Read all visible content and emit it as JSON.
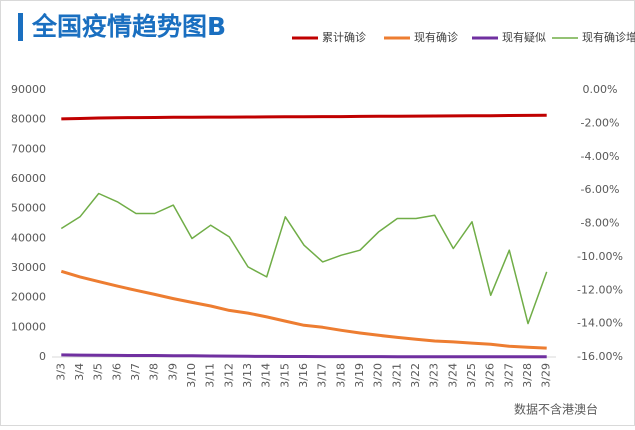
{
  "chart_data": {
    "type": "line",
    "title": "全国疫情趋势图B",
    "source": "数据不含港澳台",
    "categories": [
      "3/3",
      "3/4",
      "3/5",
      "3/6",
      "3/7",
      "3/8",
      "3/9",
      "3/10",
      "3/11",
      "3/12",
      "3/13",
      "3/14",
      "3/15",
      "3/16",
      "3/17",
      "3/18",
      "3/19",
      "3/20",
      "3/21",
      "3/22",
      "3/23",
      "3/24",
      "3/25",
      "3/26",
      "3/27",
      "3/28",
      "3/29"
    ],
    "series": [
      {
        "name": "累计确诊",
        "color": "#c00000",
        "width": 3,
        "values": [
          80270,
          80400,
          80550,
          80650,
          80700,
          80740,
          80790,
          80810,
          80860,
          80880,
          80900,
          80930,
          80970,
          80990,
          81020,
          81050,
          81090,
          81120,
          81170,
          81200,
          81230,
          81270,
          81300,
          81350,
          81400,
          81450,
          81470
        ]
      },
      {
        "name": "现有确诊",
        "color": "#ed7d31",
        "width": 3,
        "values": [
          28900,
          27000,
          25400,
          23900,
          22500,
          21100,
          19700,
          18400,
          17200,
          15700,
          14800,
          13500,
          12100,
          10700,
          10000,
          9000,
          8100,
          7300,
          6600,
          6000,
          5400,
          5100,
          4700,
          4300,
          3600,
          3300,
          3000
        ]
      },
      {
        "name": "现有疑似",
        "color": "#7030a0",
        "width": 3,
        "values": [
          700,
          650,
          600,
          550,
          520,
          500,
          450,
          400,
          350,
          300,
          250,
          200,
          180,
          160,
          150,
          140,
          130,
          120,
          110,
          100,
          100,
          100,
          100,
          100,
          100,
          100,
          100
        ]
      },
      {
        "name": "现有确诊增速",
        "color": "#70ad47",
        "width": 1.5,
        "axis": "y2",
        "values": [
          -8.3,
          -7.6,
          -6.2,
          -6.7,
          -7.4,
          -7.4,
          -6.9,
          -8.9,
          -8.1,
          -8.8,
          -10.6,
          -11.2,
          -7.6,
          -9.3,
          -10.3,
          -9.9,
          -9.6,
          -8.5,
          -7.7,
          -7.7,
          -7.5,
          -9.5,
          -7.9,
          -12.3,
          -9.6,
          -14.0,
          -10.9
        ]
      }
    ],
    "ylim": [
      0,
      90000
    ],
    "yticks": [
      0,
      10000,
      20000,
      30000,
      40000,
      50000,
      60000,
      70000,
      80000,
      90000
    ],
    "y2lim": [
      -16,
      0
    ],
    "y2ticks": [
      {
        "value": 0,
        "label": "0.00%"
      },
      {
        "value": -2,
        "label": "-2.00%"
      },
      {
        "value": -4,
        "label": "-4.00%"
      },
      {
        "value": -6,
        "label": "-6.00%"
      },
      {
        "value": -8,
        "label": "-8.00%"
      },
      {
        "value": -10,
        "label": "-10.00%"
      },
      {
        "value": -12,
        "label": "-12.00%"
      },
      {
        "value": -14,
        "label": "-14.00%"
      },
      {
        "value": -16,
        "label": "-16.00%"
      }
    ],
    "grid": false,
    "legend_position": "top"
  }
}
